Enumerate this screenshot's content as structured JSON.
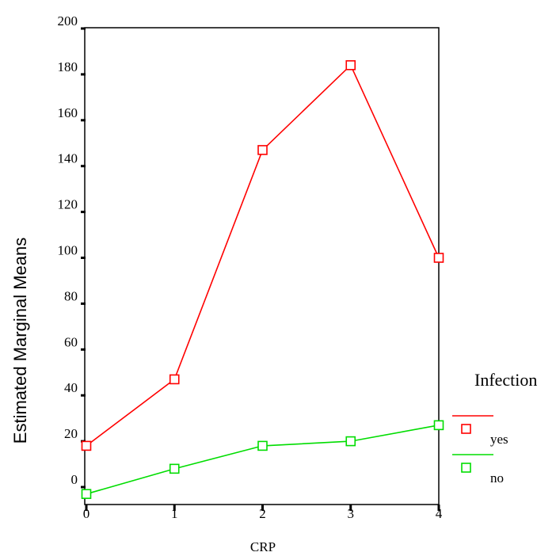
{
  "chart_data": {
    "type": "line",
    "xlabel": "CRP",
    "ylabel": "Estimated Marginal Means",
    "x": [
      0,
      1,
      2,
      3,
      4
    ],
    "x_tick_labels": [
      "0",
      "1",
      "2",
      "3",
      "4"
    ],
    "ylim": [
      0,
      200
    ],
    "y_tick_labels": [
      "0",
      "20",
      "40",
      "60",
      "80",
      "100",
      "120",
      "140",
      "160",
      "180",
      "200"
    ],
    "grid": false,
    "legend_title": "Infection",
    "legend_position": "right",
    "series": [
      {
        "name": "yes",
        "color": "#ff0000",
        "marker": "square",
        "values": [
          18,
          47,
          147,
          184,
          100
        ]
      },
      {
        "name": "no",
        "color": "#00dd00",
        "marker": "square",
        "values": [
          -3,
          8,
          18,
          20,
          27
        ]
      }
    ]
  }
}
